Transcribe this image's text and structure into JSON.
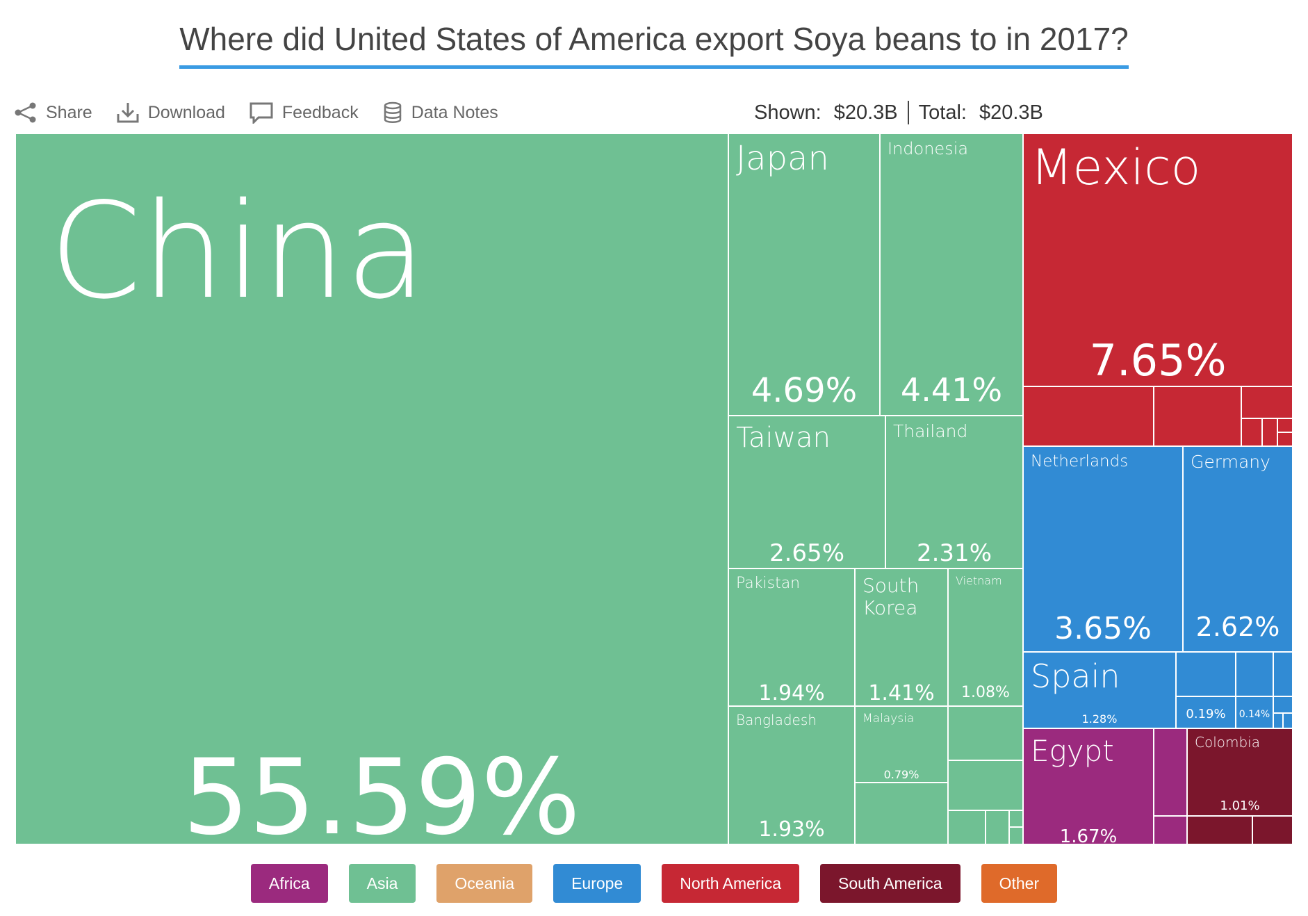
{
  "title": "Where did United States of America export Soya beans to in 2017?",
  "toolbar": {
    "share_label": "Share",
    "download_label": "Download",
    "feedback_label": "Feedback",
    "data_notes_label": "Data Notes"
  },
  "totals": {
    "shown_label": "Shown:",
    "shown_value": "$20.3B",
    "total_label": "Total:",
    "total_value": "$20.3B"
  },
  "colors": {
    "Africa": "#9b2a7e",
    "Asia": "#6fc093",
    "Oceania": "#dfa26a",
    "Europe": "#318bd4",
    "North America": "#c62834",
    "South America": "#7b162c",
    "Other": "#df6a2a"
  },
  "legend": [
    "Africa",
    "Asia",
    "Oceania",
    "Europe",
    "North America",
    "South America",
    "Other"
  ],
  "chart_data": {
    "type": "treemap",
    "title": "Where did United States of America export Soya beans to in 2017?",
    "total": "$20.3B",
    "items": [
      {
        "name": "China",
        "region": "Asia",
        "share": 55.59,
        "label": "55.59%"
      },
      {
        "name": "Mexico",
        "region": "North America",
        "share": 7.65,
        "label": "7.65%"
      },
      {
        "name": "Japan",
        "region": "Asia",
        "share": 4.69,
        "label": "4.69%"
      },
      {
        "name": "Indonesia",
        "region": "Asia",
        "share": 4.41,
        "label": "4.41%"
      },
      {
        "name": "Netherlands",
        "region": "Europe",
        "share": 3.65,
        "label": "3.65%"
      },
      {
        "name": "Taiwan",
        "region": "Asia",
        "share": 2.65,
        "label": "2.65%"
      },
      {
        "name": "Germany",
        "region": "Europe",
        "share": 2.62,
        "label": "2.62%"
      },
      {
        "name": "Thailand",
        "region": "Asia",
        "share": 2.31,
        "label": "2.31%"
      },
      {
        "name": "Pakistan",
        "region": "Asia",
        "share": 1.94,
        "label": "1.94%"
      },
      {
        "name": "Bangladesh",
        "region": "Asia",
        "share": 1.93,
        "label": "1.93%"
      },
      {
        "name": "Egypt",
        "region": "Africa",
        "share": 1.67,
        "label": "1.67%"
      },
      {
        "name": "South\nKorea",
        "region": "Asia",
        "share": 1.41,
        "label": "1.41%"
      },
      {
        "name": "Spain",
        "region": "Europe",
        "share": 1.28,
        "label": "1.28%"
      },
      {
        "name": "Vietnam",
        "region": "Asia",
        "share": 1.08,
        "label": "1.08%"
      },
      {
        "name": "Colombia",
        "region": "South America",
        "share": 1.01,
        "label": "1.01%"
      },
      {
        "name": "Malaysia",
        "region": "Asia",
        "share": 0.79,
        "label": "0.79%"
      },
      {
        "name": "",
        "region": "Europe",
        "share": 0.19,
        "label": "0.19%"
      },
      {
        "name": "",
        "region": "Europe",
        "share": 0.14,
        "label": "0.14%"
      }
    ]
  }
}
